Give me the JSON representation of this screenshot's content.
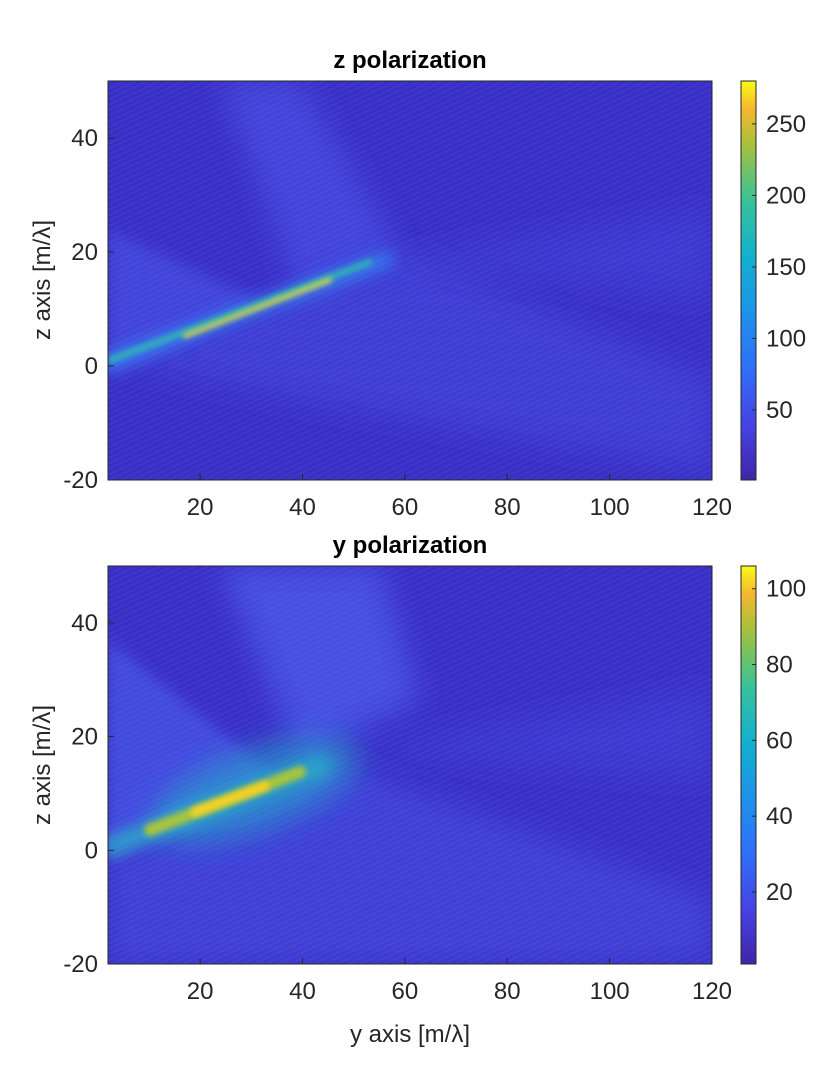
{
  "chart_data": [
    {
      "type": "heatmap",
      "title": "z polarization",
      "xlabel": "",
      "ylabel": "z axis [m/λ]",
      "xlim": [
        2,
        120
      ],
      "ylim": [
        -20,
        50
      ],
      "xticks": [
        20,
        40,
        60,
        80,
        100,
        120
      ],
      "yticks": [
        -20,
        0,
        20,
        40
      ],
      "colorbar": {
        "limits": [
          1,
          280
        ],
        "ticks": [
          50,
          100,
          150,
          200,
          250
        ]
      },
      "colormap": "parula",
      "grid": false,
      "features": {
        "beam_start": [
          2,
          1
        ],
        "beam_end": [
          57,
          19
        ],
        "peak_location": [
          32,
          11
        ],
        "peak_value": 280,
        "background_value": 10
      }
    },
    {
      "type": "heatmap",
      "title": "y polarization",
      "xlabel": "y axis [m/λ]",
      "ylabel": "z axis [m/λ]",
      "xlim": [
        2,
        120
      ],
      "ylim": [
        -20,
        50
      ],
      "xticks": [
        20,
        40,
        60,
        80,
        100,
        120
      ],
      "yticks": [
        -20,
        0,
        20,
        40
      ],
      "colorbar": {
        "limits": [
          1,
          106
        ],
        "ticks": [
          20,
          40,
          60,
          80,
          100
        ]
      },
      "colormap": "parula",
      "grid": false,
      "features": {
        "beam_start": [
          2,
          2
        ],
        "beam_end": [
          45,
          15
        ],
        "peak_location": [
          25,
          9
        ],
        "peak_value": 106,
        "background_value": 4
      }
    }
  ]
}
